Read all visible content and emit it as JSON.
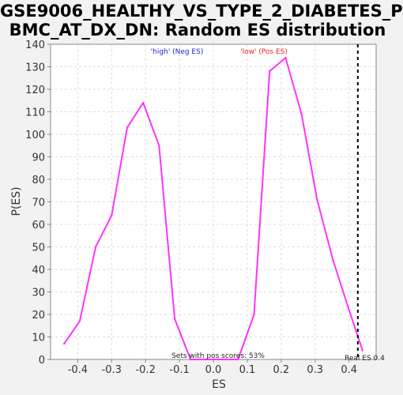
{
  "page": {
    "title_line1": "GSE9006_HEALTHY_VS_TYPE_2_DIABETES_P",
    "title_line2": "BMC_AT_DX_DN: Random ES distribution"
  },
  "chart_data": {
    "type": "line",
    "xlabel": "ES",
    "ylabel": "P(ES)",
    "xlim": [
      -0.48,
      0.48
    ],
    "ylim": [
      0,
      140
    ],
    "x_ticks": [
      -0.4,
      -0.3,
      -0.2,
      -0.1,
      0.0,
      0.1,
      0.2,
      0.3,
      0.4
    ],
    "x_tick_labels": [
      "-0.4",
      "-0.3",
      "-0.2",
      "-0.1",
      "0.0",
      "0.1",
      "0.2",
      "0.3",
      "0.4"
    ],
    "y_ticks": [
      0,
      10,
      20,
      30,
      40,
      50,
      60,
      70,
      80,
      90,
      100,
      110,
      120,
      130,
      140
    ],
    "grid": true,
    "series": [
      {
        "color": "#ff33ff",
        "x": [
          -0.44,
          -0.394,
          -0.347,
          -0.3,
          -0.254,
          -0.207,
          -0.16,
          -0.114,
          -0.067,
          0.073,
          0.12,
          0.166,
          0.213,
          0.26,
          0.306,
          0.353,
          0.4,
          0.44
        ],
        "y": [
          7,
          17,
          50,
          64,
          103,
          114,
          95,
          18,
          0,
          0,
          20,
          128,
          134,
          109,
          71,
          44,
          22,
          4
        ]
      }
    ],
    "real_es": 0.426,
    "annotations": {
      "neg_label": "'high' (Neg ES)",
      "neg_color": "#2222cc",
      "pos_label": "'low' (Pos ES)",
      "pos_color": "#ee2222",
      "sets_text": "Sets with pos scores: 53%",
      "real_es_text": "Real ES 0.4"
    }
  }
}
